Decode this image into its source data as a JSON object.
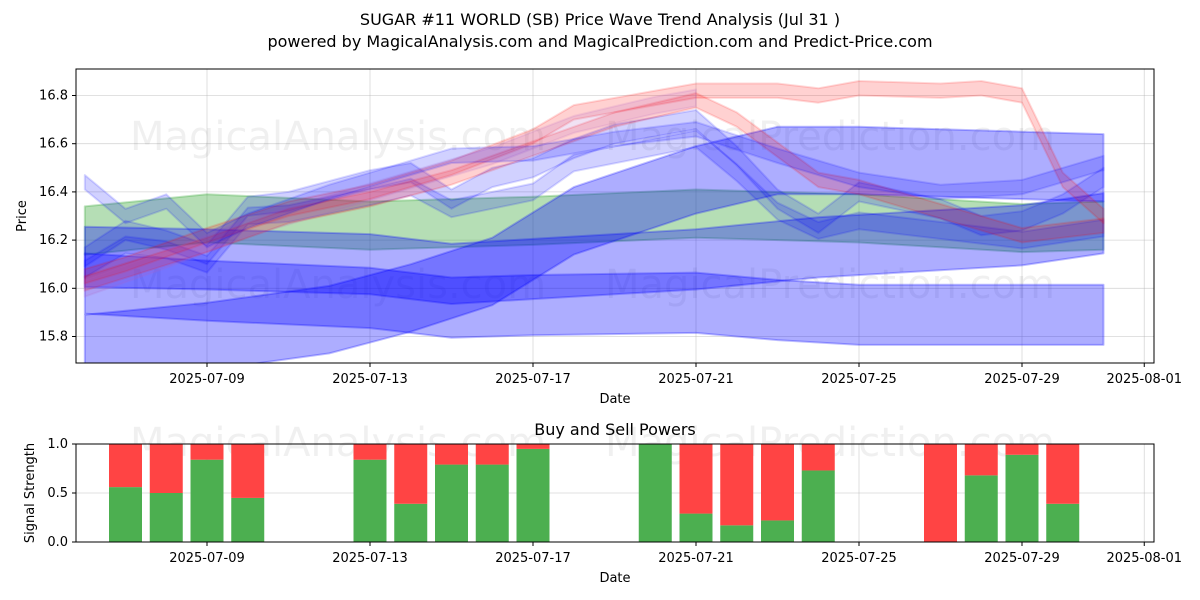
{
  "header": {
    "title": "SUGAR #11 WORLD (SB) Price Wave Trend Analysis (Jul 31 )",
    "subtitle": "powered by MagicalAnalysis.com and MagicalPrediction.com and Predict-Price.com"
  },
  "watermarks": [
    "MagicalAnalysis.com",
    "MagicalPrediction.com"
  ],
  "chart_data": [
    {
      "type": "area",
      "title": "",
      "xlabel": "Date",
      "ylabel": "Price",
      "ylim": [
        15.69,
        16.91
      ],
      "yticks": [
        15.8,
        16.0,
        16.2,
        16.4,
        16.6,
        16.8
      ],
      "xticks": [
        "2025-07-09",
        "2025-07-13",
        "2025-07-17",
        "2025-07-21",
        "2025-07-25",
        "2025-07-29",
        "2025-08-01"
      ],
      "grid": true,
      "colors": {
        "blue": "#0000ff",
        "green": "#2ca02c",
        "red": "#ff0000",
        "purple": "#b060c0"
      },
      "series": [
        {
          "color": "green",
          "points": [
            [
              "2025-07-06",
              16.24
            ],
            [
              "2025-07-09",
              16.29
            ],
            [
              "2025-07-13",
              16.26
            ],
            [
              "2025-07-17",
              16.28
            ],
            [
              "2025-07-21",
              16.31
            ],
            [
              "2025-07-25",
              16.29
            ],
            [
              "2025-07-29",
              16.25
            ],
            [
              "2025-07-31",
              16.26
            ]
          ],
          "width": 0.2
        },
        {
          "color": "blue",
          "points": [
            [
              "2025-07-06",
              16.13
            ],
            [
              "2025-07-09",
              16.12
            ],
            [
              "2025-07-13",
              16.1
            ],
            [
              "2025-07-15",
              16.06
            ],
            [
              "2025-07-17",
              16.08
            ],
            [
              "2025-07-21",
              16.12
            ],
            [
              "2025-07-24",
              16.17
            ],
            [
              "2025-07-29",
              16.22
            ],
            [
              "2025-07-31",
              16.27
            ]
          ],
          "width": 0.25
        },
        {
          "color": "blue",
          "points": [
            [
              "2025-07-06",
              15.75
            ],
            [
              "2025-07-09",
              15.8
            ],
            [
              "2025-07-12",
              15.87
            ],
            [
              "2025-07-14",
              15.96
            ],
            [
              "2025-07-16",
              16.07
            ],
            [
              "2025-07-18",
              16.28
            ],
            [
              "2025-07-21",
              16.45
            ],
            [
              "2025-07-23",
              16.53
            ],
            [
              "2025-07-25",
              16.53
            ],
            [
              "2025-07-29",
              16.51
            ],
            [
              "2025-07-31",
              16.5
            ]
          ],
          "width": 0.28
        },
        {
          "color": "blue",
          "points": [
            [
              "2025-07-06",
              16.02
            ],
            [
              "2025-07-09",
              15.99
            ],
            [
              "2025-07-13",
              15.96
            ],
            [
              "2025-07-15",
              15.92
            ],
            [
              "2025-07-17",
              15.93
            ],
            [
              "2025-07-21",
              15.94
            ],
            [
              "2025-07-23",
              15.91
            ],
            [
              "2025-07-25",
              15.89
            ],
            [
              "2025-07-29",
              15.89
            ],
            [
              "2025-07-31",
              15.89
            ]
          ],
          "width": 0.25
        },
        {
          "color": "blue",
          "points": [
            [
              "2025-07-06",
              16.13
            ],
            [
              "2025-07-07",
              16.24
            ],
            [
              "2025-07-08",
              16.2
            ],
            [
              "2025-07-09",
              16.14
            ],
            [
              "2025-07-10",
              16.34
            ],
            [
              "2025-07-11",
              16.36
            ],
            [
              "2025-07-13",
              16.45
            ],
            [
              "2025-07-14",
              16.48
            ],
            [
              "2025-07-15",
              16.37
            ],
            [
              "2025-07-16",
              16.46
            ],
            [
              "2025-07-17",
              16.5
            ],
            [
              "2025-07-18",
              16.58
            ],
            [
              "2025-07-19",
              16.64
            ],
            [
              "2025-07-21",
              16.7
            ],
            [
              "2025-07-22",
              16.55
            ],
            [
              "2025-07-23",
              16.37
            ],
            [
              "2025-07-24",
              16.27
            ],
            [
              "2025-07-25",
              16.4
            ],
            [
              "2025-07-27",
              16.33
            ],
            [
              "2025-07-28",
              16.26
            ],
            [
              "2025-07-29",
              16.28
            ],
            [
              "2025-07-30",
              16.35
            ],
            [
              "2025-07-31",
              16.46
            ]
          ],
          "width": 0.08
        },
        {
          "color": "blue",
          "points": [
            [
              "2025-07-06",
              16.08
            ],
            [
              "2025-07-07",
              16.18
            ],
            [
              "2025-07-08",
              16.16
            ],
            [
              "2025-07-09",
              16.1
            ],
            [
              "2025-07-10",
              16.3
            ],
            [
              "2025-07-11",
              16.31
            ],
            [
              "2025-07-13",
              16.38
            ],
            [
              "2025-07-14",
              16.42
            ],
            [
              "2025-07-15",
              16.33
            ],
            [
              "2025-07-17",
              16.4
            ],
            [
              "2025-07-18",
              16.52
            ],
            [
              "2025-07-21",
              16.62
            ],
            [
              "2025-07-22",
              16.48
            ],
            [
              "2025-07-23",
              16.32
            ],
            [
              "2025-07-24",
              16.24
            ],
            [
              "2025-07-25",
              16.28
            ],
            [
              "2025-07-28",
              16.22
            ],
            [
              "2025-07-29",
              16.2
            ],
            [
              "2025-07-31",
              16.25
            ]
          ],
          "width": 0.07
        },
        {
          "color": "red",
          "points": [
            [
              "2025-07-06",
              16.05
            ],
            [
              "2025-07-07",
              16.1
            ],
            [
              "2025-07-09",
              16.22
            ],
            [
              "2025-07-11",
              16.33
            ],
            [
              "2025-07-13",
              16.4
            ],
            [
              "2025-07-15",
              16.5
            ],
            [
              "2025-07-17",
              16.63
            ],
            [
              "2025-07-18",
              16.73
            ],
            [
              "2025-07-21",
              16.82
            ],
            [
              "2025-07-23",
              16.82
            ],
            [
              "2025-07-24",
              16.8
            ],
            [
              "2025-07-25",
              16.83
            ],
            [
              "2025-07-27",
              16.82
            ],
            [
              "2025-07-28",
              16.83
            ],
            [
              "2025-07-29",
              16.8
            ],
            [
              "2025-07-30",
              16.45
            ],
            [
              "2025-07-31",
              16.3
            ]
          ],
          "width": 0.06
        },
        {
          "color": "red",
          "points": [
            [
              "2025-07-06",
              16.02
            ],
            [
              "2025-07-09",
              16.18
            ],
            [
              "2025-07-11",
              16.3
            ],
            [
              "2025-07-13",
              16.37
            ],
            [
              "2025-07-15",
              16.46
            ],
            [
              "2025-07-17",
              16.58
            ],
            [
              "2025-07-19",
              16.7
            ],
            [
              "2025-07-21",
              16.78
            ],
            [
              "2025-07-22",
              16.7
            ],
            [
              "2025-07-24",
              16.45
            ],
            [
              "2025-07-25",
              16.42
            ],
            [
              "2025-07-27",
              16.32
            ],
            [
              "2025-07-29",
              16.22
            ],
            [
              "2025-07-31",
              16.26
            ]
          ],
          "width": 0.06
        },
        {
          "color": "purple",
          "points": [
            [
              "2025-07-06",
              16.0
            ],
            [
              "2025-07-08",
              16.12
            ],
            [
              "2025-07-10",
              16.25
            ],
            [
              "2025-07-12",
              16.35
            ],
            [
              "2025-07-14",
              16.45
            ],
            [
              "2025-07-16",
              16.55
            ],
            [
              "2025-07-18",
              16.68
            ],
            [
              "2025-07-20",
              16.76
            ],
            [
              "2025-07-21",
              16.79
            ]
          ],
          "width": 0.07
        },
        {
          "color": "blue",
          "points": [
            [
              "2025-07-06",
              16.44
            ],
            [
              "2025-07-07",
              16.3
            ],
            [
              "2025-07-08",
              16.36
            ],
            [
              "2025-07-09",
              16.2
            ],
            [
              "2025-07-10",
              16.28
            ],
            [
              "2025-07-12",
              16.4
            ],
            [
              "2025-07-14",
              16.5
            ],
            [
              "2025-07-15",
              16.55
            ],
            [
              "2025-07-17",
              16.56
            ],
            [
              "2025-07-19",
              16.62
            ],
            [
              "2025-07-21",
              16.66
            ],
            [
              "2025-07-23",
              16.55
            ],
            [
              "2025-07-25",
              16.45
            ],
            [
              "2025-07-27",
              16.4
            ],
            [
              "2025-07-29",
              16.42
            ],
            [
              "2025-07-31",
              16.52
            ]
          ],
          "width": 0.06
        }
      ]
    },
    {
      "type": "bar",
      "title": "Buy and Sell Powers",
      "xlabel": "Date",
      "ylabel": "Signal Strength",
      "ylim": [
        0,
        1.0
      ],
      "yticks": [
        0.0,
        0.5,
        1.0
      ],
      "xticks": [
        "2025-07-09",
        "2025-07-13",
        "2025-07-17",
        "2025-07-21",
        "2025-07-25",
        "2025-07-29",
        "2025-08-01"
      ],
      "grid": true,
      "colors": {
        "buy": "#4caf50",
        "sell": "#ff4444"
      },
      "categories": [
        "2025-07-07",
        "2025-07-08",
        "2025-07-09",
        "2025-07-10",
        "2025-07-13",
        "2025-07-14",
        "2025-07-15",
        "2025-07-16",
        "2025-07-17",
        "2025-07-20",
        "2025-07-21",
        "2025-07-22",
        "2025-07-23",
        "2025-07-24",
        "2025-07-27",
        "2025-07-28",
        "2025-07-29",
        "2025-07-30"
      ],
      "series": [
        {
          "values": [
            0.56,
            0.5,
            0.84,
            0.45,
            0.84,
            0.39,
            0.79,
            0.79,
            0.95,
            1.0,
            0.29,
            0.17,
            0.22,
            0.73,
            0.0,
            0.68,
            0.89,
            0.39
          ]
        },
        {
          "values": [
            0.44,
            0.5,
            0.16,
            0.55,
            0.16,
            0.61,
            0.21,
            0.21,
            0.05,
            0.0,
            0.71,
            0.83,
            0.78,
            0.27,
            1.0,
            0.32,
            0.11,
            0.61
          ]
        }
      ]
    }
  ]
}
